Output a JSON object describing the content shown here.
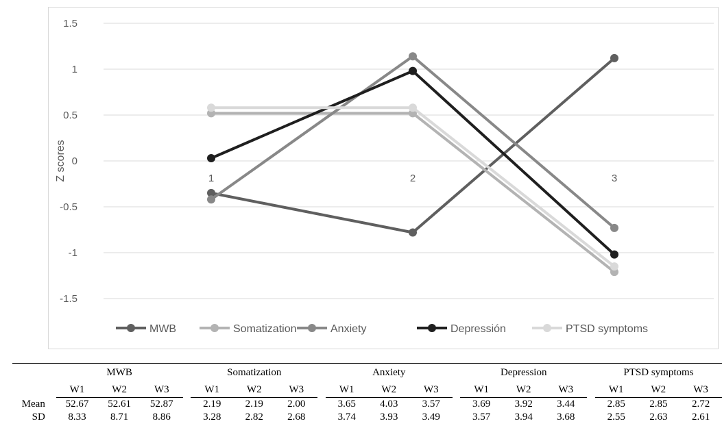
{
  "chart_data": {
    "type": "line",
    "title": "",
    "xlabel": "",
    "ylabel": "Z scores",
    "x_categories": [
      "1",
      "2",
      "3"
    ],
    "ylim": [
      -1.5,
      1.5
    ],
    "yticks": [
      "1.5",
      "1",
      "0.5",
      "0",
      "-0.5",
      "-1",
      "-1.5"
    ],
    "ytick_values": [
      1.5,
      1,
      0.5,
      0,
      -0.5,
      -1,
      -1.5
    ],
    "grid": true,
    "legend_position": "bottom",
    "series": [
      {
        "name": "MWB",
        "color": "#5f5f5f",
        "values": [
          -0.35,
          -0.78,
          1.12
        ]
      },
      {
        "name": "Somatization",
        "color": "#b3b3b3",
        "values": [
          0.52,
          0.52,
          -1.21
        ]
      },
      {
        "name": "Anxiety",
        "color": "#888888",
        "values": [
          -0.42,
          1.14,
          -0.73
        ]
      },
      {
        "name": "Depressión",
        "color": "#1f1f1f",
        "values": [
          0.03,
          0.98,
          -1.02
        ]
      },
      {
        "name": "PTSD symptoms",
        "color": "#d9d9d9",
        "values": [
          0.58,
          0.58,
          -1.15
        ]
      }
    ]
  },
  "table": {
    "groups": [
      "MWB",
      "Somatization",
      "Anxiety",
      "Depression",
      "PTSD symptoms"
    ],
    "waves": [
      "W1",
      "W2",
      "W3"
    ],
    "rows": [
      {
        "label": "Mean",
        "values": [
          [
            "52.67",
            "52.61",
            "52.87"
          ],
          [
            "2.19",
            "2.19",
            "2.00"
          ],
          [
            "3.65",
            "4.03",
            "3.57"
          ],
          [
            "3.69",
            "3.92",
            "3.44"
          ],
          [
            "2.85",
            "2.85",
            "2.72"
          ]
        ]
      },
      {
        "label": "SD",
        "values": [
          [
            "8.33",
            "8.71",
            "8.86"
          ],
          [
            "3.28",
            "2.82",
            "2.68"
          ],
          [
            "3.74",
            "3.93",
            "3.49"
          ],
          [
            "3.57",
            "3.94",
            "3.68"
          ],
          [
            "2.55",
            "2.63",
            "2.61"
          ]
        ]
      }
    ]
  }
}
